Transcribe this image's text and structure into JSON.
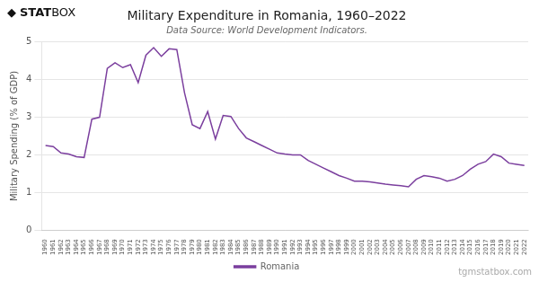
{
  "chart_data": {
    "type": "line",
    "title": "Military Expenditure in Romania, 1960–2022",
    "subtitle": "Data Source: World Development Indicators.",
    "ylabel": "Military Spending (% of GDP)",
    "annotations": [
      "◆",
      "STAT",
      "BOX",
      "tgmstatbox.com"
    ],
    "x": [
      1960,
      1961,
      1962,
      1963,
      1964,
      1965,
      1966,
      1967,
      1968,
      1969,
      1970,
      1971,
      1972,
      1973,
      1974,
      1975,
      1976,
      1977,
      1978,
      1979,
      1980,
      1981,
      1982,
      1983,
      1984,
      1985,
      1986,
      1987,
      1988,
      1989,
      1990,
      1991,
      1992,
      1993,
      1994,
      1995,
      1996,
      1997,
      1998,
      1999,
      2000,
      2001,
      2002,
      2003,
      2004,
      2005,
      2006,
      2007,
      2008,
      2009,
      2010,
      2011,
      2012,
      2013,
      2014,
      2015,
      2016,
      2017,
      2018,
      2019,
      2020,
      2021,
      2022
    ],
    "series": [
      {
        "name": "Romania",
        "color": "#7b3f9e",
        "values": [
          2.25,
          2.22,
          2.05,
          2.02,
          1.95,
          1.93,
          2.95,
          3.0,
          4.3,
          4.45,
          4.32,
          4.4,
          3.92,
          4.65,
          4.85,
          4.62,
          4.82,
          4.8,
          3.65,
          2.8,
          2.7,
          3.15,
          2.42,
          3.05,
          3.02,
          2.7,
          2.45,
          2.35,
          2.25,
          2.15,
          2.05,
          2.02,
          2.0,
          2.0,
          1.85,
          1.75,
          1.65,
          1.55,
          1.45,
          1.38,
          1.3,
          1.3,
          1.28,
          1.25,
          1.22,
          1.2,
          1.18,
          1.15,
          1.35,
          1.45,
          1.42,
          1.38,
          1.3,
          1.35,
          1.45,
          1.62,
          1.75,
          1.82,
          2.02,
          1.95,
          1.78,
          1.75,
          1.72
        ]
      }
    ],
    "xlim": [
      1959.5,
      2022.5
    ],
    "xticks": [
      1960,
      1961,
      1962,
      1963,
      1964,
      1965,
      1966,
      1967,
      1968,
      1969,
      1970,
      1971,
      1972,
      1973,
      1974,
      1975,
      1976,
      1977,
      1978,
      1979,
      1980,
      1981,
      1982,
      1983,
      1984,
      1985,
      1986,
      1987,
      1988,
      1989,
      1990,
      1991,
      1992,
      1993,
      1994,
      1995,
      1996,
      1997,
      1998,
      1999,
      2000,
      2001,
      2002,
      2003,
      2004,
      2005,
      2006,
      2007,
      2008,
      2009,
      2010,
      2011,
      2012,
      2013,
      2014,
      2015,
      2016,
      2017,
      2018,
      2019,
      2020,
      2021,
      2022
    ],
    "ylim": [
      0,
      5
    ],
    "yticks": [
      0,
      1,
      2,
      3,
      4,
      5
    ],
    "grid": true,
    "legend": "bottom"
  }
}
